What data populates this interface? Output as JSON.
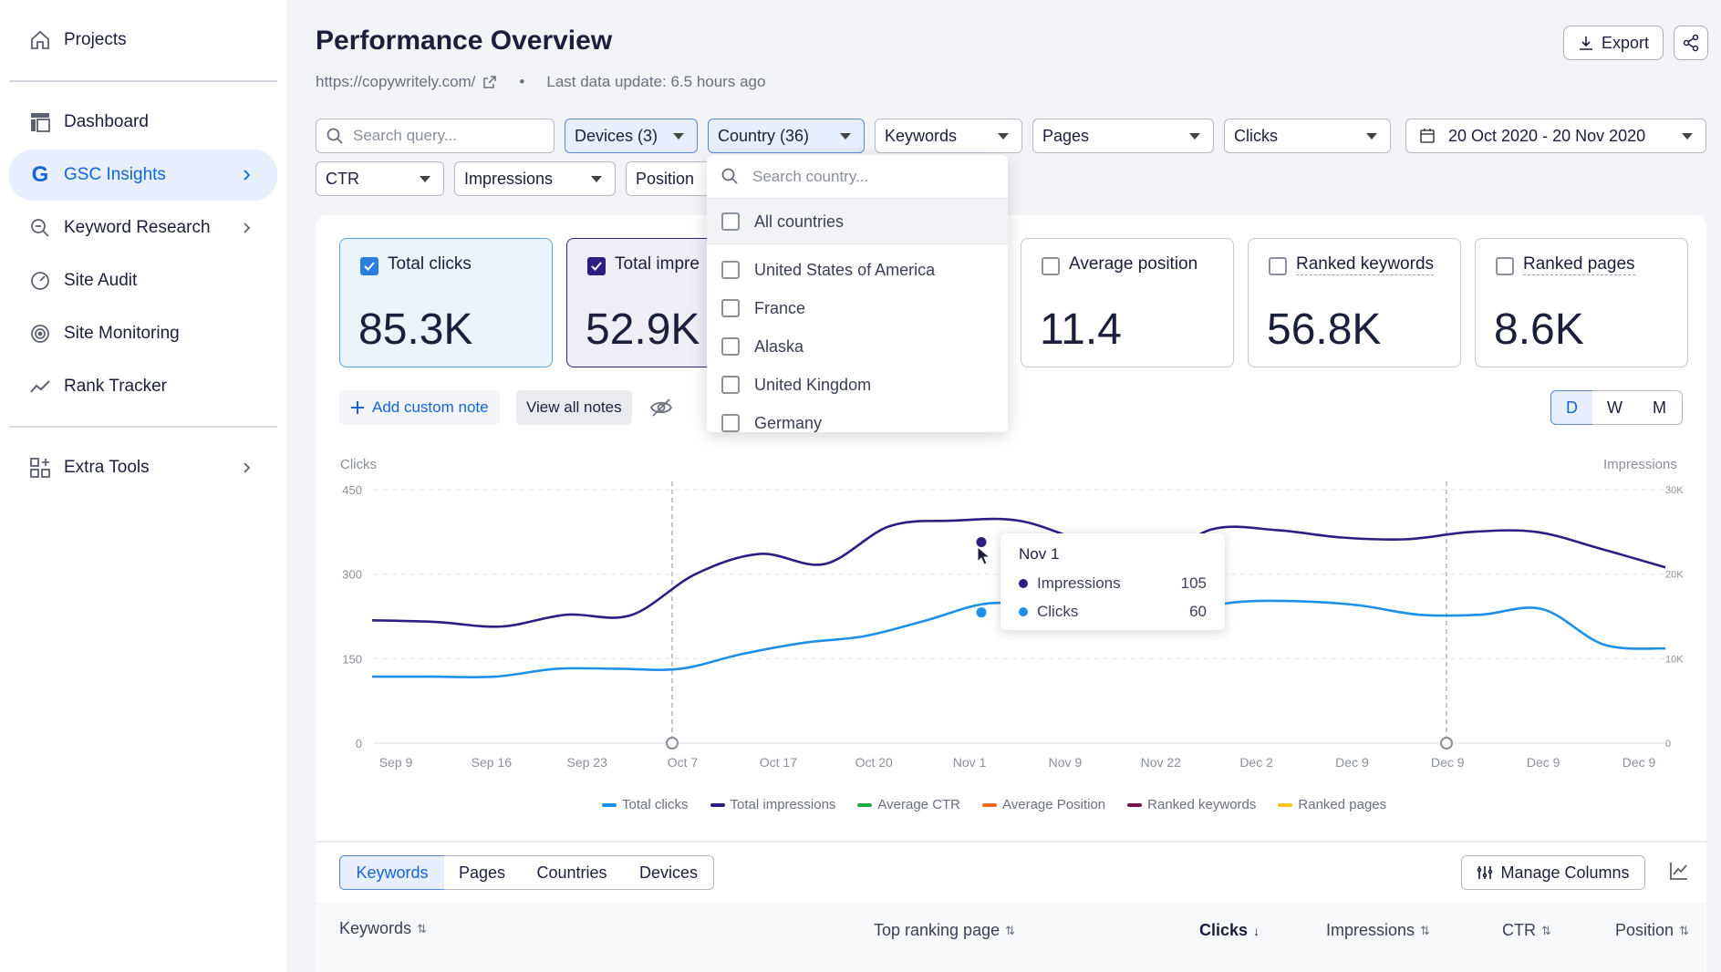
{
  "sidebar": {
    "items": [
      {
        "label": "Projects",
        "icon": "home-icon"
      },
      {
        "label": "Dashboard",
        "icon": "dashboard-icon"
      },
      {
        "label": "GSC Insights",
        "icon": "google-icon",
        "active": true
      },
      {
        "label": "Keyword Research",
        "icon": "keyword-search-icon"
      },
      {
        "label": "Site Audit",
        "icon": "gauge-icon"
      },
      {
        "label": "Site Monitoring",
        "icon": "monitoring-icon"
      },
      {
        "label": "Rank Tracker",
        "icon": "trend-icon"
      },
      {
        "label": "Extra Tools",
        "icon": "tools-grid-icon"
      }
    ]
  },
  "header": {
    "title": "Performance Overview",
    "url": "https://copywritely.com/",
    "separator": "•",
    "last_update": "Last data update: 6.5 hours ago",
    "export_label": "Export"
  },
  "filters": {
    "search_placeholder": "Search query...",
    "devices": "Devices (3)",
    "country": "Country (36)",
    "keywords": "Keywords",
    "pages": "Pages",
    "clicks": "Clicks",
    "date_range": "20 Oct 2020 - 20 Nov 2020",
    "ctr": "CTR",
    "impressions": "Impressions",
    "position": "Position"
  },
  "country_dropdown": {
    "search_placeholder": "Search country...",
    "all_label": "All countries",
    "options": [
      "United States of America",
      "France",
      "Alaska",
      "United Kingdom",
      "Germany"
    ]
  },
  "kpis": [
    {
      "label": "Total clicks",
      "value": "85.3K",
      "checked": true
    },
    {
      "label": "Total impre",
      "value": "52.9K",
      "checked": true
    },
    {
      "label": "Average position",
      "value": "11.4",
      "checked": false
    },
    {
      "label": "Ranked keywords",
      "value": "56.8K",
      "checked": false
    },
    {
      "label": "Ranked pages",
      "value": "8.6K",
      "checked": false
    }
  ],
  "notes": {
    "add_label": "Add custom note",
    "view_label": "View all notes"
  },
  "granularity": {
    "options": [
      "D",
      "W",
      "M"
    ],
    "selected": "D"
  },
  "chart_data": {
    "type": "line",
    "left_axis_title": "Clicks",
    "right_axis_title": "Impressions",
    "y_left_ticks": [
      "450",
      "300",
      "150",
      "0"
    ],
    "y_right_ticks": [
      "30K",
      "20K",
      "10K",
      "0"
    ],
    "ylim": [
      0,
      450
    ],
    "y2lim": [
      0,
      30000
    ],
    "x_ticks": [
      "Sep 9",
      "Sep 16",
      "Sep 23",
      "Oct 7",
      "Oct 17",
      "Oct 20",
      "Nov 1",
      "Nov 9",
      "Nov 22",
      "Dec 2",
      "Dec 9",
      "Dec 9",
      "Dec 9",
      "Dec 9"
    ],
    "series": [
      {
        "name": "Total impressions",
        "color": "#2f1d82",
        "axis": "left",
        "values": [
          218,
          215,
          207,
          228,
          227,
          300,
          336,
          318,
          385,
          395,
          395,
          358,
          322,
          380,
          378,
          365,
          362,
          375,
          375,
          345,
          312
        ]
      },
      {
        "name": "Total clicks",
        "color": "#1e90e8",
        "axis": "left",
        "values": [
          118,
          118,
          118,
          132,
          132,
          132,
          158,
          178,
          190,
          218,
          248,
          240,
          225,
          230,
          250,
          252,
          245,
          228,
          228,
          238,
          175,
          168
        ]
      }
    ],
    "legend": [
      {
        "label": "Total clicks",
        "color": "#1e90e8"
      },
      {
        "label": "Total impressions",
        "color": "#2f1d82"
      },
      {
        "label": "Average CTR",
        "color": "#22a745"
      },
      {
        "label": "Average Position",
        "color": "#f26b1d"
      },
      {
        "label": "Ranked keywords",
        "color": "#7a1250"
      },
      {
        "label": "Ranked pages",
        "color": "#f5c518"
      }
    ],
    "markers": [
      "Oct 7",
      "Dec 9"
    ],
    "tooltip": {
      "title": "Nov 1",
      "rows": [
        {
          "label": "Impressions",
          "value": "105",
          "color": "#2f1d82"
        },
        {
          "label": "Clicks",
          "value": "60",
          "color": "#1e90e8"
        }
      ]
    }
  },
  "table": {
    "tabs": [
      "Keywords",
      "Pages",
      "Countries",
      "Devices"
    ],
    "active_tab": "Keywords",
    "manage_columns_label": "Manage Columns",
    "headers": [
      "Keywords",
      "Top ranking page",
      "Clicks",
      "Impressions",
      "CTR",
      "Position"
    ]
  }
}
